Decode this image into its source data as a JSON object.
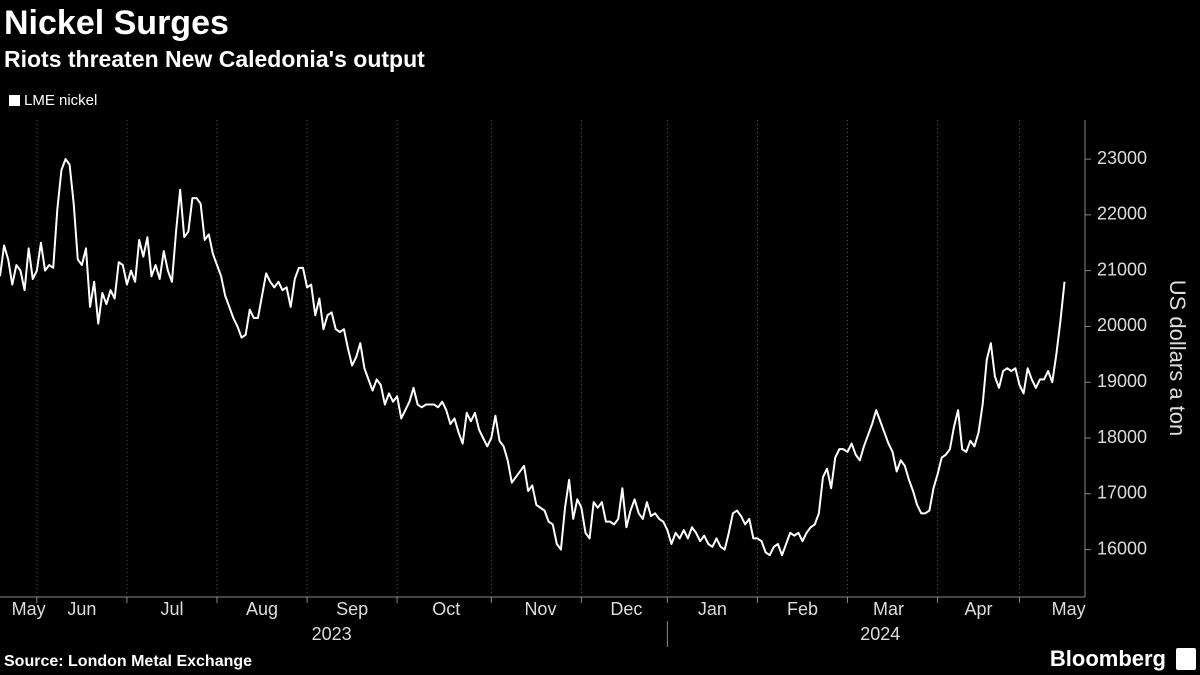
{
  "chart_data": {
    "type": "line",
    "title": "Nickel Surges",
    "subtitle": "Riots threaten New Caledonia's output",
    "source": "Source: London Metal Exchange",
    "brand": "Bloomberg",
    "ylabel": "US dollars a ton",
    "series": [
      {
        "name": "LME nickel",
        "color": "#ffffff",
        "values": [
          20900,
          21450,
          21200,
          20750,
          21100,
          21000,
          20650,
          21400,
          20850,
          21000,
          21500,
          21000,
          21100,
          21050,
          22100,
          22800,
          23000,
          22900,
          22200,
          21200,
          21100,
          21400,
          20350,
          20800,
          20050,
          20600,
          20400,
          20650,
          20500,
          21150,
          21100,
          20750,
          21000,
          20800,
          21550,
          21250,
          21600,
          20900,
          21100,
          20850,
          21350,
          21000,
          20800,
          21700,
          22450,
          21600,
          21700,
          22300,
          22300,
          22200,
          21550,
          21650,
          21300,
          21100,
          20900,
          20550,
          20350,
          20150,
          20000,
          19800,
          19850,
          20300,
          20150,
          20150,
          20550,
          20950,
          20800,
          20700,
          20800,
          20650,
          20700,
          20350,
          20850,
          21050,
          21050,
          20700,
          20750,
          20200,
          20500,
          19950,
          20200,
          20250,
          19950,
          19900,
          19950,
          19600,
          19300,
          19450,
          19700,
          19250,
          19050,
          18850,
          19050,
          18950,
          18600,
          18800,
          18650,
          18750,
          18350,
          18500,
          18650,
          18900,
          18600,
          18550,
          18600,
          18600,
          18600,
          18550,
          18650,
          18500,
          18250,
          18350,
          18100,
          17900,
          18450,
          18300,
          18450,
          18150,
          18000,
          17850,
          18000,
          18400,
          17950,
          17850,
          17600,
          17200,
          17300,
          17400,
          17500,
          17050,
          17150,
          16800,
          16750,
          16700,
          16500,
          16450,
          16100,
          16000,
          16750,
          17250,
          16550,
          16900,
          16750,
          16300,
          16200,
          16850,
          16750,
          16850,
          16500,
          16500,
          16450,
          16550,
          17100,
          16400,
          16700,
          16900,
          16650,
          16550,
          16850,
          16600,
          16650,
          16550,
          16500,
          16350,
          16100,
          16300,
          16200,
          16350,
          16200,
          16400,
          16300,
          16150,
          16250,
          16100,
          16050,
          16200,
          16050,
          16000,
          16300,
          16650,
          16700,
          16600,
          16450,
          16550,
          16200,
          16200,
          16150,
          15950,
          15900,
          16050,
          16100,
          15900,
          16100,
          16300,
          16250,
          16300,
          16150,
          16300,
          16400,
          16450,
          16650,
          17300,
          17450,
          17100,
          17650,
          17800,
          17800,
          17750,
          17900,
          17700,
          17600,
          17850,
          18050,
          18250,
          18500,
          18300,
          18100,
          17900,
          17750,
          17400,
          17600,
          17500,
          17250,
          17050,
          16800,
          16650,
          16650,
          16700,
          17100,
          17350,
          17650,
          17700,
          17800,
          18200,
          18500,
          17800,
          17750,
          17950,
          17850,
          18100,
          18600,
          19400,
          19700,
          19100,
          18900,
          19200,
          19250,
          19200,
          19250,
          18950,
          18800,
          19250,
          19050,
          18900,
          19050,
          19050,
          19200,
          19000,
          19500,
          20100,
          20800
        ]
      }
    ],
    "xlim": [
      0,
      265
    ],
    "xticks": [
      9,
      31,
      53,
      75,
      97,
      120,
      142,
      163,
      185,
      207,
      229,
      249
    ],
    "month_labels": [
      {
        "value": 7,
        "label": "May"
      },
      {
        "value": 20,
        "label": "Jun"
      },
      {
        "value": 42,
        "label": "Jul"
      },
      {
        "value": 64,
        "label": "Aug"
      },
      {
        "value": 86,
        "label": "Sep"
      },
      {
        "value": 109,
        "label": "Oct"
      },
      {
        "value": 132,
        "label": "Nov"
      },
      {
        "value": 153,
        "label": "Dec"
      },
      {
        "value": 174,
        "label": "Jan"
      },
      {
        "value": 196,
        "label": "Feb"
      },
      {
        "value": 217,
        "label": "Mar"
      },
      {
        "value": 239,
        "label": "Apr"
      },
      {
        "value": 261,
        "label": "May"
      }
    ],
    "year_labels": [
      {
        "value": 81,
        "label": "2023"
      },
      {
        "value": 215,
        "label": "2024"
      }
    ],
    "year_divider": 163,
    "ylim": [
      15150,
      23700
    ],
    "yticks": [
      16000,
      17000,
      18000,
      19000,
      20000,
      21000,
      22000,
      23000
    ],
    "grid": true
  }
}
